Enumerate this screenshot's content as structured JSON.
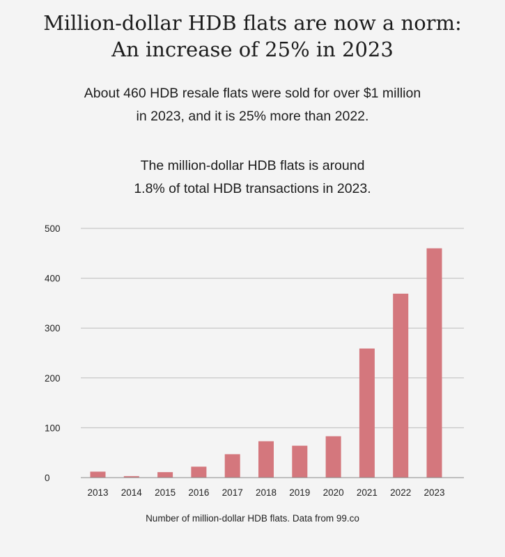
{
  "title": {
    "line1": "Million-dollar HDB flats are now a norm:",
    "line2": "An increase of 25% in 2023"
  },
  "subtitle": {
    "p1_line1": "About 460 HDB resale flats were sold for over $1 million",
    "p1_line2": "in 2023, and it is 25% more than 2022.",
    "p2_line1": "The million-dollar HDB flats is around",
    "p2_line2": "1.8% of total HDB transactions in 2023."
  },
  "caption": "Number of million-dollar HDB flats. Data from 99.co",
  "colors": {
    "bar": "#d4777d",
    "grid": "#bdbdbd",
    "background": "#f4f4f4"
  },
  "chart_data": {
    "type": "bar",
    "title": "Million-dollar HDB flats are now a norm: An increase of 25% in 2023",
    "xlabel": "",
    "ylabel": "",
    "categories": [
      "2013",
      "2014",
      "2015",
      "2016",
      "2017",
      "2018",
      "2019",
      "2020",
      "2021",
      "2022",
      "2023"
    ],
    "values": [
      12,
      3,
      11,
      22,
      47,
      73,
      64,
      83,
      259,
      369,
      460
    ],
    "ylim": [
      0,
      500
    ],
    "yticks": [
      0,
      100,
      200,
      300,
      400,
      500
    ],
    "grid": true,
    "legend": "none"
  }
}
